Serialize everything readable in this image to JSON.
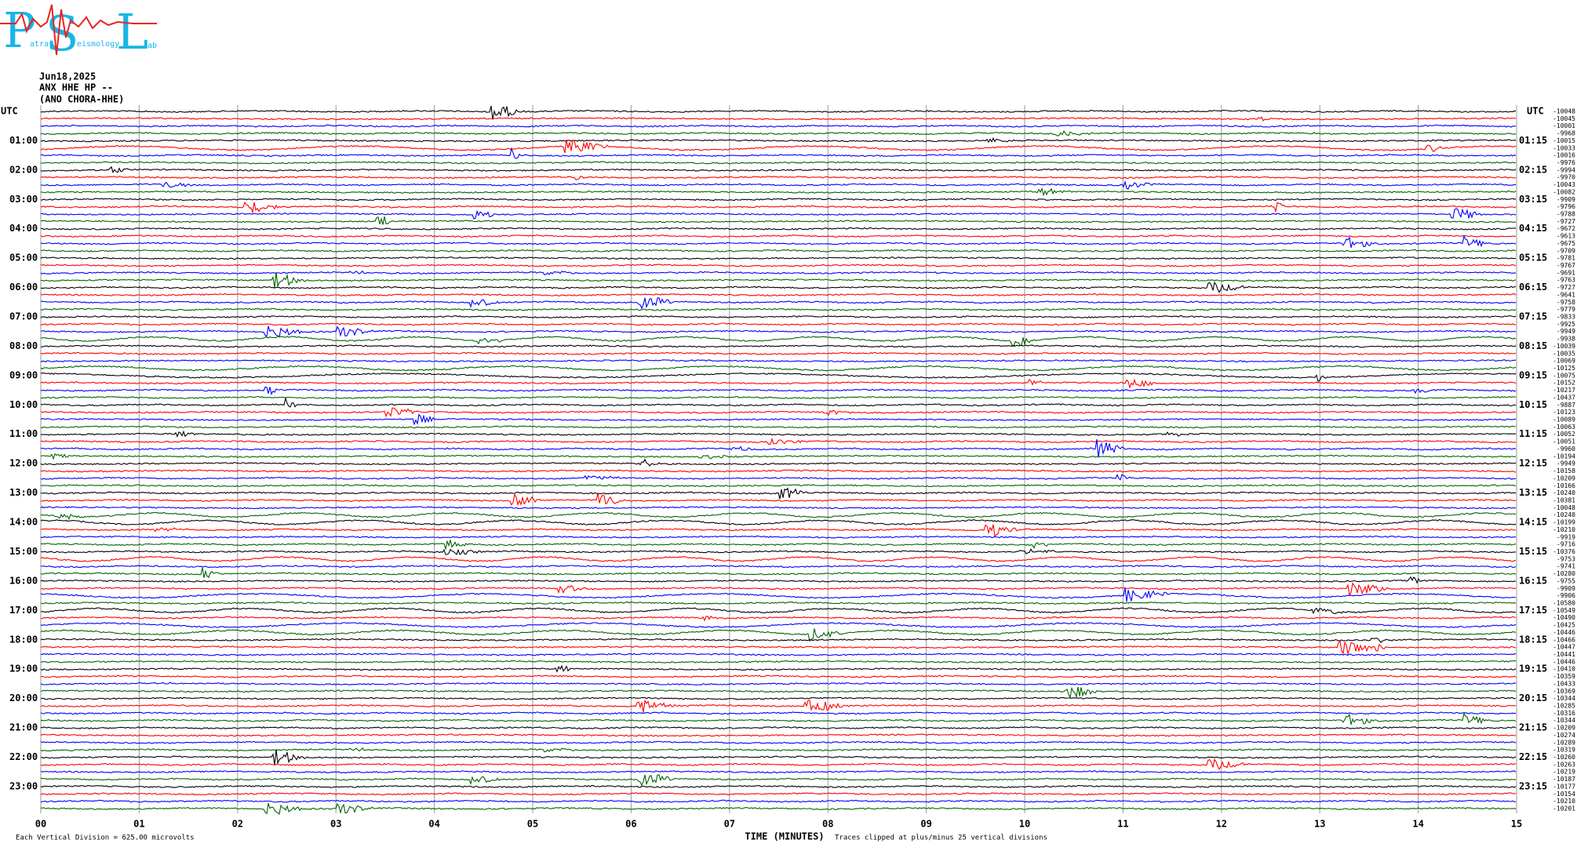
{
  "logo": {
    "letters": [
      "P",
      "S",
      "L"
    ],
    "words": [
      "atras",
      "eismology",
      "ab"
    ]
  },
  "header": {
    "date": "Jun18,2025",
    "station": "ANX HHE HP --",
    "location": "(ANO CHORA-HHE)"
  },
  "left_axis": {
    "title": "UTC",
    "labels": [
      "01:00",
      "02:00",
      "03:00",
      "04:00",
      "05:00",
      "06:00",
      "07:00",
      "08:00",
      "09:00",
      "10:00",
      "11:00",
      "12:00",
      "13:00",
      "14:00",
      "15:00",
      "16:00",
      "17:00",
      "18:00",
      "19:00",
      "20:00",
      "21:00",
      "22:00",
      "23:00"
    ]
  },
  "right_axis": {
    "title": "UTC",
    "labels": [
      "01:15",
      "02:15",
      "03:15",
      "04:15",
      "05:15",
      "06:15",
      "07:15",
      "08:15",
      "09:15",
      "10:15",
      "11:15",
      "12:15",
      "13:15",
      "14:15",
      "15:15",
      "16:15",
      "17:15",
      "18:15",
      "19:15",
      "20:15",
      "21:15",
      "22:15",
      "23:15"
    ]
  },
  "offsets": [
    -10048,
    -10045,
    -10001,
    -9968,
    -10015,
    -10033,
    -10016,
    -9976,
    -9994,
    -9970,
    -10043,
    -10082,
    -9909,
    -9796,
    -9788,
    -9727,
    -9672,
    -9613,
    -9675,
    -9709,
    -9781,
    -9767,
    -9691,
    -9763,
    -9727,
    -9641,
    -9758,
    -9779,
    -9833,
    -9925,
    -9949,
    -9938,
    -10039,
    -10035,
    -10069,
    -10125,
    -10075,
    -10152,
    -10217,
    -10437,
    -9887,
    -10123,
    -10089,
    -10063,
    -10052,
    -10051,
    -9960,
    -10194,
    -9949,
    -10158,
    -10209,
    -10166,
    -10240,
    -10381,
    -10048,
    -10240,
    -10199,
    -10210,
    -9919,
    -9716,
    -10376,
    -9753,
    -9741,
    -10280,
    -9755,
    -9909,
    -9906,
    -10580,
    -10549,
    -10490,
    -10425,
    -10446,
    -10466,
    -10447,
    -10441,
    -10446,
    -10410,
    -10359,
    -10433,
    -10369,
    -10344,
    -10285,
    -10316,
    -10344,
    -10209,
    -10274,
    -10289,
    -10319,
    -10260,
    -10263,
    -10219,
    -10187,
    -10177,
    -10154,
    -10210,
    -10201
  ],
  "x_axis": {
    "labels": [
      "00",
      "01",
      "02",
      "03",
      "04",
      "05",
      "06",
      "07",
      "08",
      "09",
      "10",
      "11",
      "12",
      "13",
      "14",
      "15"
    ],
    "title": "TIME (MINUTES)"
  },
  "footer": {
    "scale": "Each Vertical Division =  625.00 microvolts",
    "clip": "Traces clipped at plus/minus 25 vertical divisions"
  },
  "trace_colors": [
    "#000000",
    "#ff0000",
    "#0000ff",
    "#006400"
  ]
}
